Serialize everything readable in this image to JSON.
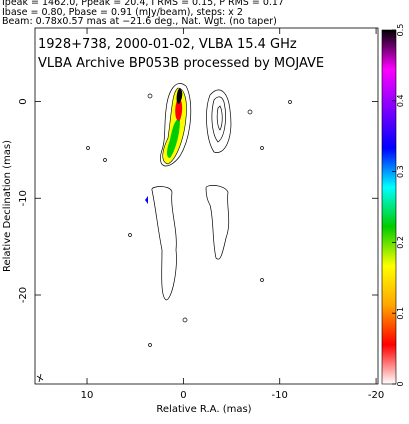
{
  "chart_data": {
    "type": "contour",
    "header": [
      "Ipeak = 1462.0, Ppeak = 20.4, I RMS = 0.15, P RMS = 0.17",
      "Ibase = 0.80, Pbase = 0.91 (mJy/beam), steps: x 2",
      "Beam: 0.78x0.57 mas at −21.6 deg., Nat. Wgt. (no taper)"
    ],
    "annotations": [
      "1928+738, 2000-01-02, VLBA 15.4 GHz",
      "VLBA Archive BP053B processed by MOJAVE"
    ],
    "xlabel": "Relative R.A. (mas)",
    "ylabel": "Relative Declination (mas)",
    "xlim": [
      15.4,
      -20.2
    ],
    "xticks": [
      10,
      0,
      -10,
      -20
    ],
    "ylim": [
      7.6,
      -29.2
    ],
    "yticks": [
      0,
      -10,
      -20
    ],
    "colorbar": {
      "lim": [
        0,
        0.5
      ],
      "ticks": [
        0,
        0.1,
        0.2,
        0.3,
        0.4,
        0.5
      ],
      "colors": [
        "#ffffff",
        "#ff0000",
        "#ffa500",
        "#ffff00",
        "#00cc00",
        "#00ffff",
        "#0000ff",
        "#8000ff",
        "#ff00ff",
        "#000000"
      ]
    }
  }
}
